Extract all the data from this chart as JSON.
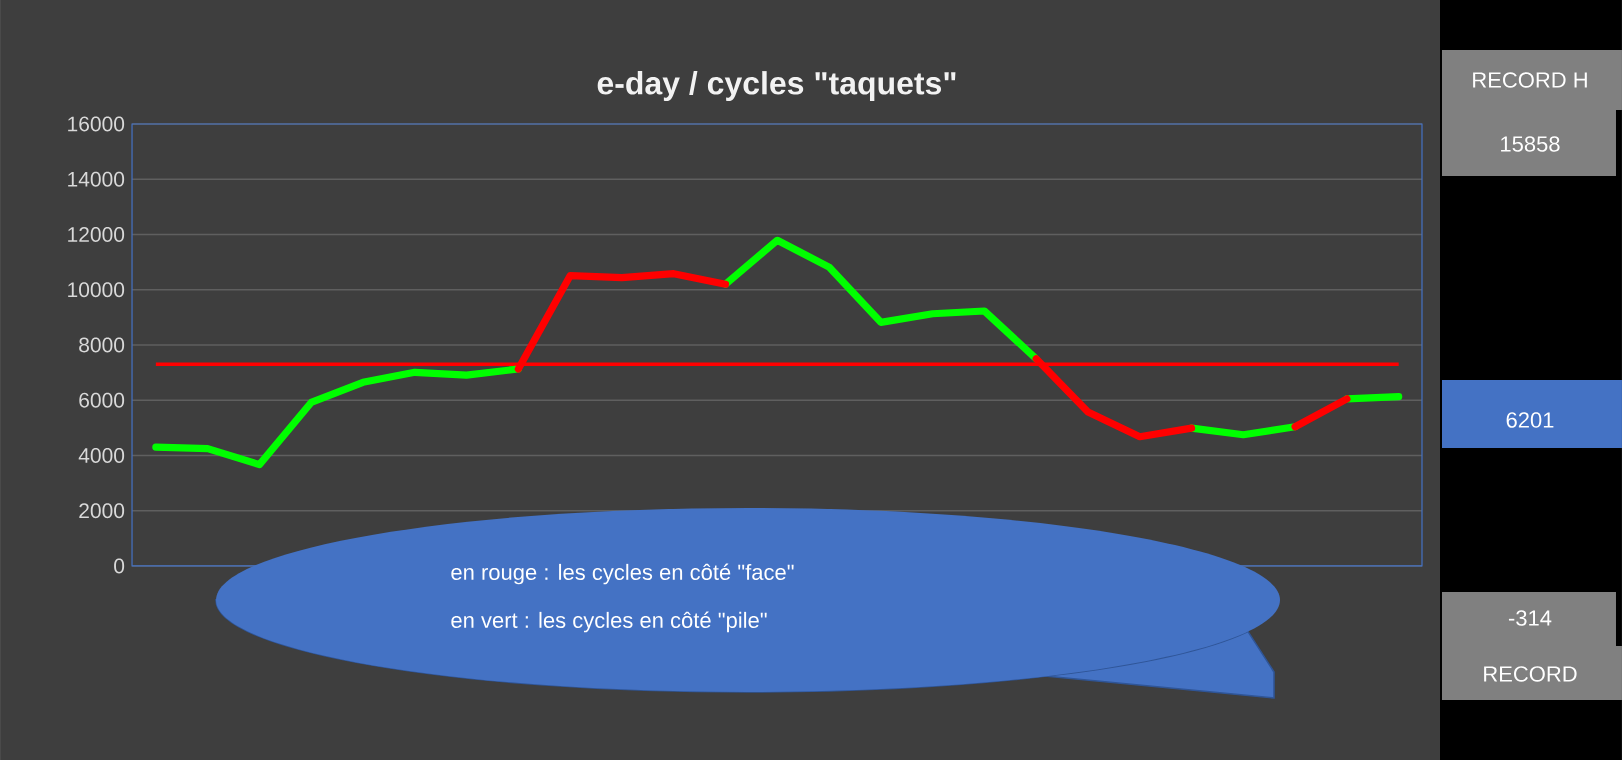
{
  "chart_data": {
    "type": "line",
    "title": "e-day   / cycles \"taquets\"",
    "categories": [
      null,
      null,
      null,
      null,
      null,
      null,
      null,
      null,
      null,
      null,
      null,
      null,
      null,
      null,
      null,
      null,
      null,
      null,
      null,
      null,
      null,
      null,
      null,
      null,
      null
    ],
    "series": [
      {
        "color": "#00ff00",
        "values": [
          4300,
          4250,
          3670,
          5920,
          6650,
          7010,
          6910,
          7130,
          null,
          null,
          null,
          10200,
          11790,
          10820,
          8820,
          9130,
          9230,
          7500,
          null,
          null,
          4990,
          4750,
          5040,
          null,
          null
        ]
      },
      {
        "color": "#00ff00",
        "values": [
          null,
          null,
          null,
          null,
          null,
          null,
          null,
          null,
          null,
          null,
          null,
          null,
          null,
          null,
          null,
          null,
          null,
          null,
          null,
          null,
          null,
          null,
          null,
          6050,
          6130
        ]
      },
      {
        "color": "#ff0000",
        "values": [
          null,
          null,
          null,
          null,
          null,
          null,
          null,
          7130,
          10510,
          10440,
          10580,
          10200,
          null,
          null,
          null,
          null,
          null,
          7500,
          5570,
          4680,
          4990,
          null,
          null,
          null,
          null
        ]
      },
      {
        "color": "#ff0000",
        "values": [
          null,
          null,
          null,
          null,
          null,
          null,
          null,
          null,
          null,
          null,
          null,
          null,
          null,
          null,
          null,
          null,
          null,
          null,
          null,
          null,
          null,
          null,
          5040,
          6050,
          null
        ]
      }
    ],
    "ylim": [
      0,
      16000
    ],
    "yticks": [
      0,
      2000,
      4000,
      6000,
      8000,
      10000,
      12000,
      14000,
      16000
    ],
    "grid": "y",
    "tick_labels": "y",
    "marker": "none",
    "line_style": "solid",
    "ref_lines": [
      {
        "axis": "y",
        "value": 7300,
        "color": "#ff0000"
      }
    ],
    "annotations": [
      "en rouge : les cycles en côté \"face\"",
      "en vert : les cycles en côté \"pile\"",
      "RECORD H",
      "15858",
      "6201",
      "-314",
      "RECORD"
    ]
  }
}
